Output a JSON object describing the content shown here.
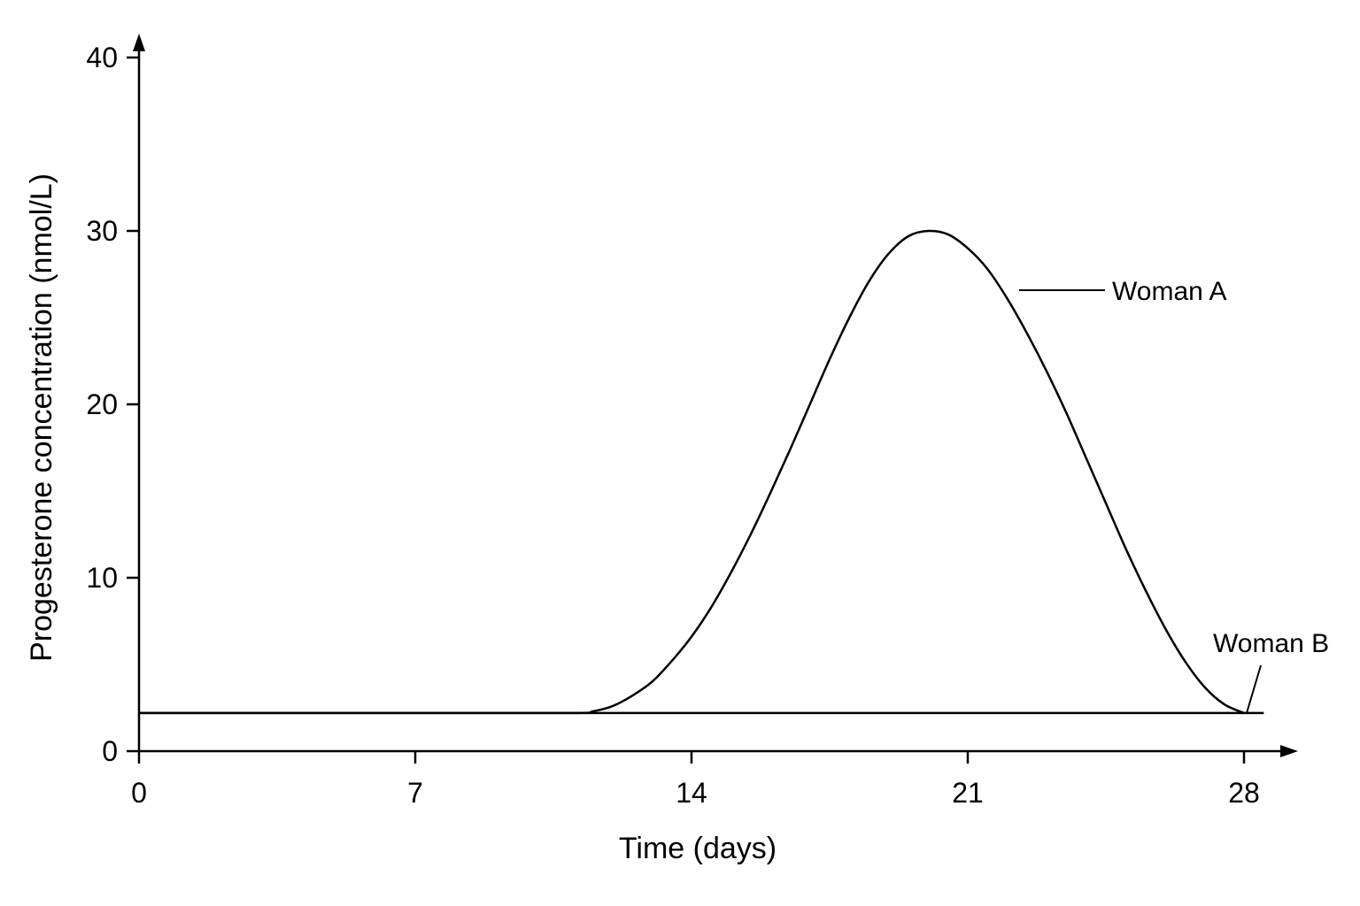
{
  "chart_data": {
    "type": "line",
    "xlabel": "Time (days)",
    "ylabel": "Progesterone concentration (nmol/L)",
    "xlim": [
      0,
      28
    ],
    "ylim": [
      0,
      40
    ],
    "x_ticks": [
      0,
      7,
      14,
      21,
      28
    ],
    "y_ticks": [
      0,
      10,
      20,
      30,
      40
    ],
    "grid": false,
    "legend": "none",
    "series": [
      {
        "name": "Woman A",
        "x": [
          0,
          7,
          11,
          11.5,
          12,
          12.5,
          13,
          13.5,
          14,
          14.5,
          15,
          15.5,
          16,
          16.5,
          17,
          17.5,
          18,
          18.5,
          19,
          19.5,
          20,
          20.5,
          21,
          21.5,
          22,
          22.5,
          23,
          23.5,
          24,
          24.5,
          25,
          25.5,
          26,
          26.5,
          27,
          27.5,
          28
        ],
        "y": [
          2.2,
          2.2,
          2.2,
          2.3,
          2.6,
          3.2,
          4.0,
          5.2,
          6.6,
          8.3,
          10.3,
          12.5,
          14.9,
          17.4,
          20.0,
          22.6,
          25.0,
          27.1,
          28.7,
          29.7,
          30.0,
          29.8,
          29.0,
          27.8,
          26.1,
          24.1,
          21.9,
          19.5,
          16.9,
          14.3,
          11.7,
          9.3,
          7.1,
          5.2,
          3.7,
          2.7,
          2.2
        ]
      },
      {
        "name": "Woman B",
        "x": [
          0,
          28.5
        ],
        "y": [
          2.2,
          2.2
        ]
      }
    ]
  }
}
